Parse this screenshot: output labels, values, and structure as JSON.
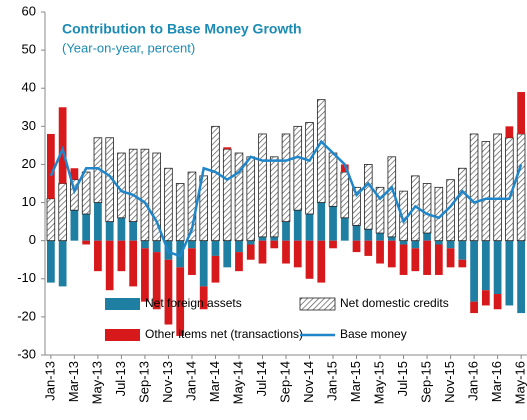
{
  "chart_data": {
    "type": "stacked-bar-line",
    "title": "Contribution to Base Money Growth",
    "subtitle": "(Year-on-year, percent)",
    "categories": [
      "Jan-13",
      null,
      "Mar-13",
      null,
      "May-13",
      null,
      "Jul-13",
      null,
      "Sep-13",
      null,
      "Nov-13",
      null,
      "Jan-14",
      null,
      "Mar-14",
      null,
      "May-14",
      null,
      "Jul-14",
      null,
      "Sep-14",
      null,
      "Nov-14",
      null,
      "Jan-15",
      null,
      "Mar-15",
      null,
      "May-15",
      null,
      "Jul-15",
      null,
      "Sep-15",
      null,
      "Nov-15",
      null,
      "Jan-16",
      null,
      "Mar-16",
      null,
      "May-16"
    ],
    "series": [
      {
        "name": "Net foreign assets",
        "type": "bar",
        "color": "#1f7fa3",
        "values": [
          -11,
          -12,
          8,
          7,
          10,
          5,
          6,
          5,
          -2,
          -3,
          -5,
          -7,
          -2,
          -12,
          -4,
          -7,
          -3,
          -1,
          1,
          1,
          5,
          8,
          7,
          10,
          9,
          6,
          4,
          3,
          2,
          1,
          -1,
          -2,
          2,
          -1,
          -2,
          -5,
          -16,
          -13,
          -14,
          -17,
          -19
        ]
      },
      {
        "name": "Net domestic credits",
        "type": "bar",
        "color": "hatch",
        "values": [
          11,
          15,
          8,
          11,
          17,
          22,
          17,
          19,
          24,
          23,
          19,
          15,
          18,
          17,
          30,
          24,
          23,
          22,
          27,
          21,
          23,
          22,
          24,
          27,
          14,
          12,
          10,
          17,
          12,
          21,
          13,
          17,
          13,
          14,
          16,
          19,
          28,
          26,
          28,
          27,
          28
        ]
      },
      {
        "name": "Other items net (transactions)",
        "type": "bar",
        "color": "#d7191c",
        "values": [
          17,
          20,
          3,
          -1,
          -8,
          -13,
          -8,
          -12,
          -14,
          -15,
          -17,
          -18,
          -7,
          -6,
          -7,
          0.5,
          -5,
          -4,
          -6,
          -2,
          -6,
          -7,
          -10,
          -11,
          -2,
          2,
          -3,
          -4,
          -6,
          -7,
          -8,
          -6,
          -9,
          -8,
          -5,
          -2,
          -3,
          -4,
          -4,
          3,
          11
        ]
      },
      {
        "name": "Base money",
        "type": "line",
        "color": "#1f86c9",
        "values": [
          17,
          24,
          13,
          19,
          19,
          17,
          13,
          12,
          10,
          5,
          -3,
          -4,
          3,
          19,
          18,
          16,
          18,
          22,
          21,
          21,
          21,
          22,
          21,
          26,
          23,
          20,
          12,
          15,
          11,
          14,
          5,
          9,
          7,
          6,
          9,
          13,
          10,
          11,
          11,
          11,
          20
        ]
      }
    ],
    "ylim": [
      -30,
      60
    ],
    "yticks": [
      -30,
      -20,
      -10,
      0,
      10,
      20,
      30,
      40,
      50,
      60
    ]
  }
}
